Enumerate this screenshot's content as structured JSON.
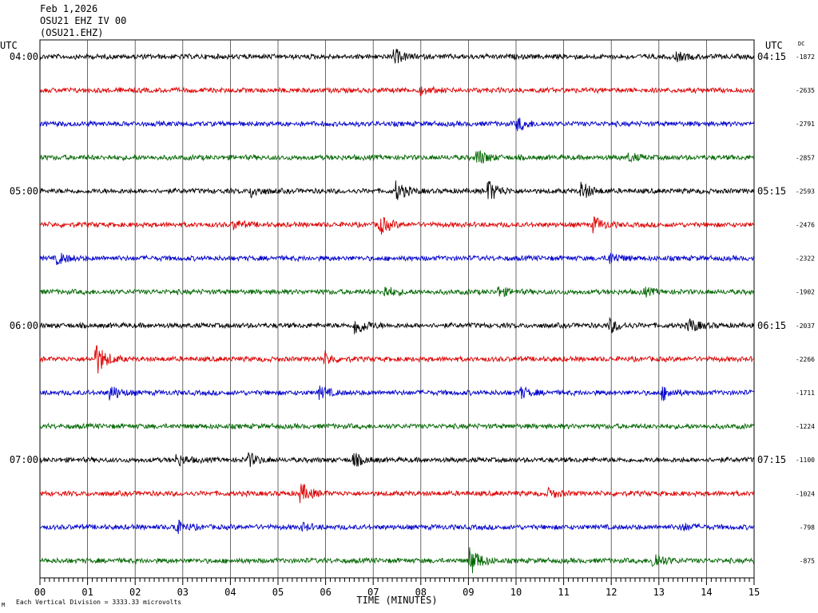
{
  "header": {
    "date": "Feb 1,2026",
    "station": "OSU21 EHZ IV 00",
    "channel": "(OSU21.EHZ)"
  },
  "footer": {
    "scale_note": "Each Vertical Division = 3333.33 microvolts",
    "marker": "M"
  },
  "chart_data": {
    "type": "line",
    "title": "",
    "xlabel": "TIME (MINUTES)",
    "ylabel": "",
    "xlim": [
      0,
      15
    ],
    "x_ticks": [
      "00",
      "01",
      "02",
      "03",
      "04",
      "05",
      "06",
      "07",
      "08",
      "09",
      "10",
      "11",
      "12",
      "13",
      "14",
      "15"
    ],
    "left_axis_label": "UTC",
    "right_axis_label": "UTC",
    "dc_label": "DC",
    "trace_colors": [
      "#000000",
      "#dd0000",
      "#0000cc",
      "#006600"
    ],
    "hour_labels": [
      {
        "row": 0,
        "left": "04:00",
        "right": "04:15"
      },
      {
        "row": 4,
        "left": "05:00",
        "right": "05:15"
      },
      {
        "row": 8,
        "left": "06:00",
        "right": "06:15"
      },
      {
        "row": 12,
        "left": "07:00",
        "right": "07:15"
      }
    ],
    "dc_offsets": [
      "-1872",
      "-2635",
      "-2791",
      "-2857",
      "-2593",
      "-2476",
      "-2322",
      "-1902",
      "-2037",
      "-2266",
      "-1711",
      "-1224",
      "-1100",
      "-1024",
      "-798",
      "-875"
    ],
    "events": [
      {
        "row": 0,
        "minute": 7.45,
        "amplitude": 0.4
      },
      {
        "row": 0,
        "minute": 13.4,
        "amplitude": 0.2
      },
      {
        "row": 1,
        "minute": 8.0,
        "amplitude": 0.2
      },
      {
        "row": 2,
        "minute": 10.05,
        "amplitude": 0.35
      },
      {
        "row": 3,
        "minute": 9.2,
        "amplitude": 0.45
      },
      {
        "row": 3,
        "minute": 12.4,
        "amplitude": 0.2
      },
      {
        "row": 4,
        "minute": 4.45,
        "amplitude": 0.3
      },
      {
        "row": 4,
        "minute": 7.5,
        "amplitude": 0.5
      },
      {
        "row": 4,
        "minute": 9.45,
        "amplitude": 0.55
      },
      {
        "row": 4,
        "minute": 11.4,
        "amplitude": 0.45
      },
      {
        "row": 5,
        "minute": 4.1,
        "amplitude": 0.2
      },
      {
        "row": 5,
        "minute": 7.15,
        "amplitude": 0.5
      },
      {
        "row": 5,
        "minute": 11.65,
        "amplitude": 0.4
      },
      {
        "row": 6,
        "minute": 0.4,
        "amplitude": 0.3
      },
      {
        "row": 6,
        "minute": 11.95,
        "amplitude": 0.35
      },
      {
        "row": 7,
        "minute": 7.25,
        "amplitude": 0.3
      },
      {
        "row": 7,
        "minute": 9.65,
        "amplitude": 0.25
      },
      {
        "row": 7,
        "minute": 12.7,
        "amplitude": 0.2
      },
      {
        "row": 8,
        "minute": 6.65,
        "amplitude": 0.55
      },
      {
        "row": 8,
        "minute": 12.0,
        "amplitude": 0.35
      },
      {
        "row": 8,
        "minute": 13.65,
        "amplitude": 0.4
      },
      {
        "row": 9,
        "minute": 1.2,
        "amplitude": 0.85
      },
      {
        "row": 9,
        "minute": 6.0,
        "amplitude": 0.3
      },
      {
        "row": 10,
        "minute": 1.5,
        "amplitude": 0.4
      },
      {
        "row": 10,
        "minute": 5.9,
        "amplitude": 0.3
      },
      {
        "row": 10,
        "minute": 10.1,
        "amplitude": 0.3
      },
      {
        "row": 10,
        "minute": 13.1,
        "amplitude": 0.35
      },
      {
        "row": 12,
        "minute": 2.9,
        "amplitude": 0.3
      },
      {
        "row": 12,
        "minute": 4.4,
        "amplitude": 0.35
      },
      {
        "row": 12,
        "minute": 6.6,
        "amplitude": 0.35
      },
      {
        "row": 13,
        "minute": 5.5,
        "amplitude": 0.5
      },
      {
        "row": 13,
        "minute": 10.7,
        "amplitude": 0.25
      },
      {
        "row": 14,
        "minute": 2.85,
        "amplitude": 0.4
      },
      {
        "row": 14,
        "minute": 5.5,
        "amplitude": 0.2
      },
      {
        "row": 14,
        "minute": 13.5,
        "amplitude": 0.2
      },
      {
        "row": 15,
        "minute": 9.05,
        "amplitude": 0.8
      },
      {
        "row": 15,
        "minute": 12.9,
        "amplitude": 0.5
      }
    ]
  }
}
